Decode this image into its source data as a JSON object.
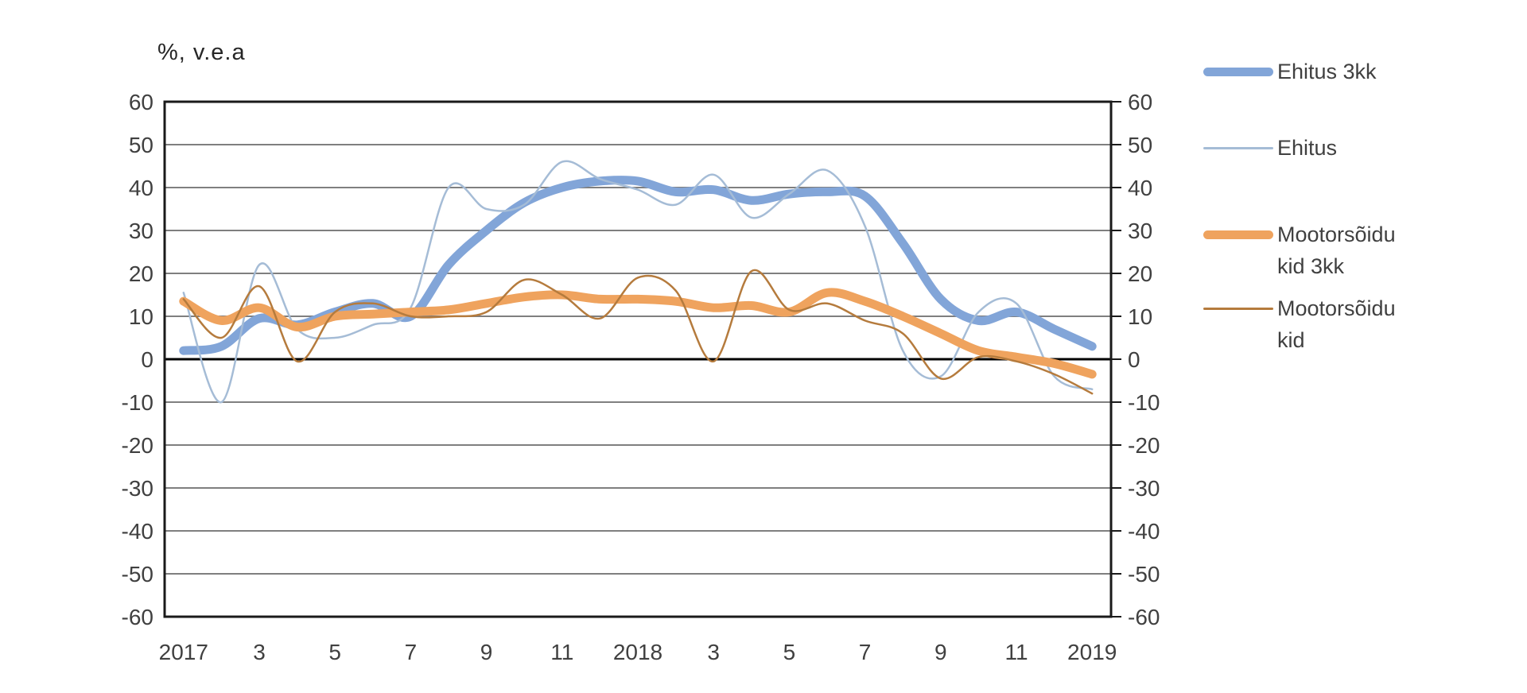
{
  "chart_data": {
    "type": "line",
    "title": "%, v.e.a",
    "x_tick_labels": [
      "2017",
      "3",
      "5",
      "7",
      "9",
      "11",
      "2018",
      "3",
      "5",
      "7",
      "9",
      "11",
      "2019"
    ],
    "x_axis_note": "monthly data, January 2017 - January 2019, labels every second month",
    "y_ticks": [
      60,
      50,
      40,
      30,
      20,
      10,
      0,
      -10,
      -20,
      -30,
      -40,
      -50,
      -60
    ],
    "ylim": [
      -60,
      60
    ],
    "grid": true,
    "legend_position": "right",
    "background": "#FFFFFF",
    "grid_color": "#7F7F7F",
    "axis_color": "#1A1A1A",
    "zero_line_color": "#000000",
    "text_color": "#404040",
    "series": [
      {
        "name": "Ehitus 3kk",
        "color": "#82A5D8",
        "thickness": 11,
        "values": [
          2,
          3,
          9.5,
          8,
          11,
          13,
          10,
          22,
          30,
          36.5,
          40,
          41.5,
          41.5,
          39,
          39.5,
          37,
          38.5,
          39,
          38,
          27,
          14,
          9,
          11,
          7,
          3
        ]
      },
      {
        "name": "Ehitus",
        "color": "#A5BCD6",
        "thickness": 2.5,
        "values": [
          15.5,
          -10,
          22,
          7,
          5,
          8,
          12,
          40,
          35,
          36,
          46,
          42,
          39.5,
          36,
          43,
          33,
          38.5,
          44,
          31,
          2,
          -4,
          11,
          13,
          -4,
          -7
        ]
      },
      {
        "name": "Mootorsõidu kid 3kk",
        "color": "#EFA35E",
        "thickness": 11,
        "values": [
          13.5,
          9,
          12,
          7.5,
          10,
          10.5,
          11,
          11.5,
          13,
          14.5,
          15,
          14,
          14,
          13.5,
          12,
          12.5,
          11,
          15.5,
          13.5,
          10,
          6,
          2,
          0.5,
          -1,
          -3.5
        ]
      },
      {
        "name": "Mootorsõidu kid",
        "color": "#B57B3D",
        "thickness": 2.5,
        "values": [
          14,
          5,
          17,
          -0.5,
          11,
          13,
          10,
          10,
          11,
          18.5,
          15,
          9.5,
          19,
          16,
          -0.5,
          20.5,
          11.5,
          13,
          9,
          6,
          -4.5,
          0.5,
          -0.5,
          -3.5,
          -8
        ]
      }
    ]
  }
}
